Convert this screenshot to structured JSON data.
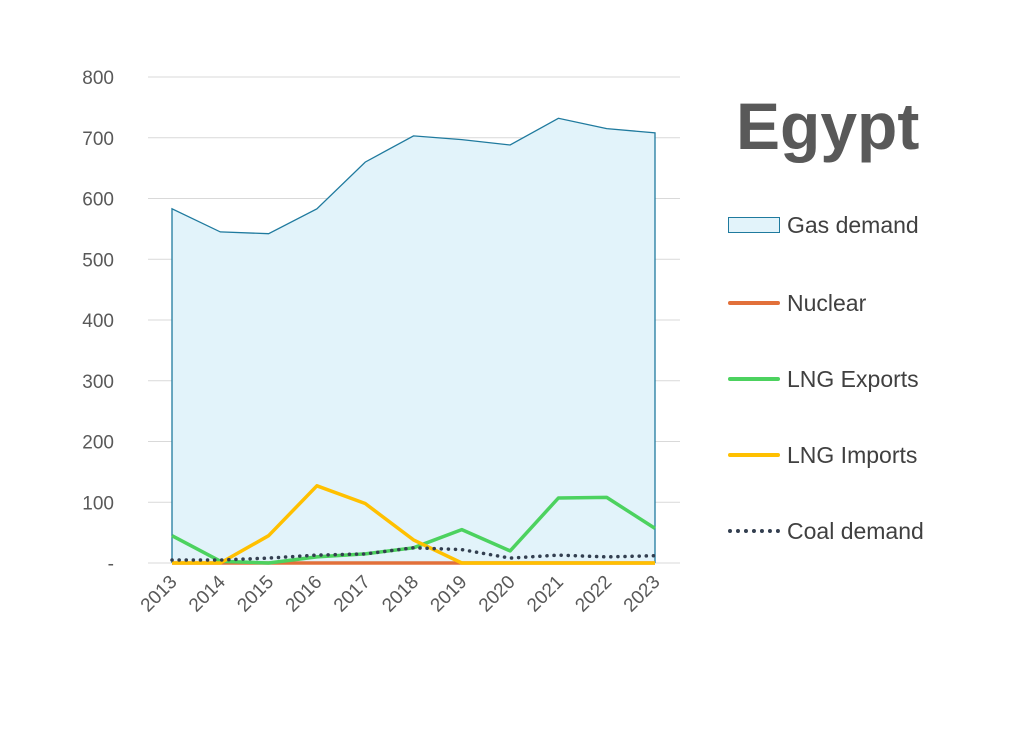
{
  "chart_data": {
    "type": "line",
    "title": "Egypt",
    "categories": [
      "2013",
      "2014",
      "2015",
      "2016",
      "2017",
      "2018",
      "2019",
      "2020",
      "2021",
      "2022",
      "2023"
    ],
    "y_ticks": [
      "-",
      "100",
      "200",
      "300",
      "400",
      "500",
      "600",
      "700",
      "800"
    ],
    "ylim": [
      0,
      800
    ],
    "grid": "horizontal",
    "legend_position": "right",
    "series": [
      {
        "name": "Gas demand",
        "style": "area",
        "color": "#1f7a9e",
        "fill": "#e2f3fa",
        "values": [
          583,
          545,
          542,
          583,
          660,
          703,
          697,
          688,
          732,
          715,
          708
        ]
      },
      {
        "name": "Nuclear",
        "style": "line",
        "color": "#e2703a",
        "values": [
          0,
          0,
          0,
          0,
          0,
          0,
          0,
          0,
          0,
          0,
          0
        ]
      },
      {
        "name": "LNG Exports",
        "style": "line",
        "color": "#4cd25f",
        "values": [
          45,
          3,
          0,
          10,
          15,
          25,
          55,
          20,
          107,
          108,
          57
        ]
      },
      {
        "name": "LNG Imports",
        "style": "line",
        "color": "#ffc000",
        "values": [
          0,
          0,
          45,
          127,
          98,
          38,
          0,
          0,
          0,
          0,
          0
        ]
      },
      {
        "name": "Coal demand",
        "style": "dotted",
        "color": "#333f50",
        "values": [
          5,
          5,
          8,
          13,
          15,
          25,
          22,
          8,
          13,
          10,
          12
        ]
      }
    ]
  }
}
